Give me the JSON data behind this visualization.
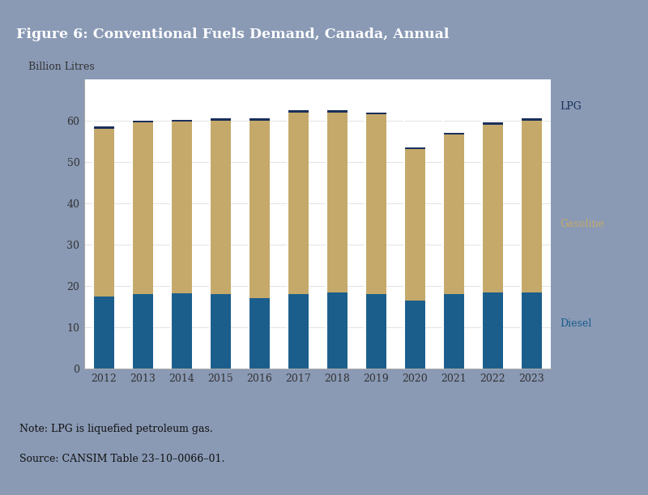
{
  "title": "Figure 6: Conventional Fuels Demand, Canada, Annual",
  "ylabel": "Billion Litres",
  "years": [
    2012,
    2013,
    2014,
    2015,
    2016,
    2017,
    2018,
    2019,
    2020,
    2021,
    2022,
    2023
  ],
  "diesel": [
    17.5,
    18.0,
    18.2,
    18.0,
    17.0,
    18.0,
    18.5,
    18.0,
    16.5,
    18.0,
    18.5,
    18.5
  ],
  "gasoline": [
    40.5,
    41.5,
    41.5,
    42.0,
    43.0,
    44.0,
    43.5,
    43.5,
    36.7,
    38.7,
    40.5,
    41.5
  ],
  "lpg": [
    0.5,
    0.5,
    0.5,
    0.5,
    0.5,
    0.5,
    0.5,
    0.5,
    0.3,
    0.3,
    0.5,
    0.5
  ],
  "diesel_color": "#1b5e8c",
  "gasoline_color": "#c4a96a",
  "lpg_color": "#1a2f5a",
  "bg_header": "#1a3057",
  "bg_white": "#ffffff",
  "bg_footer": "#8a9ab5",
  "bg_fig": "#8a9ab5",
  "title_color": "#ffffff",
  "note_line1": "Note: LPG is liquefied petroleum gas.",
  "note_line2": "Source: CANSIM Table 23–10–0066–01.",
  "ylim": [
    0,
    70
  ],
  "yticks": [
    0,
    10,
    20,
    30,
    40,
    50,
    60
  ],
  "label_diesel": "Diesel",
  "label_gasoline": "Gasoline",
  "label_lpg": "LPG",
  "bar_width": 0.55
}
